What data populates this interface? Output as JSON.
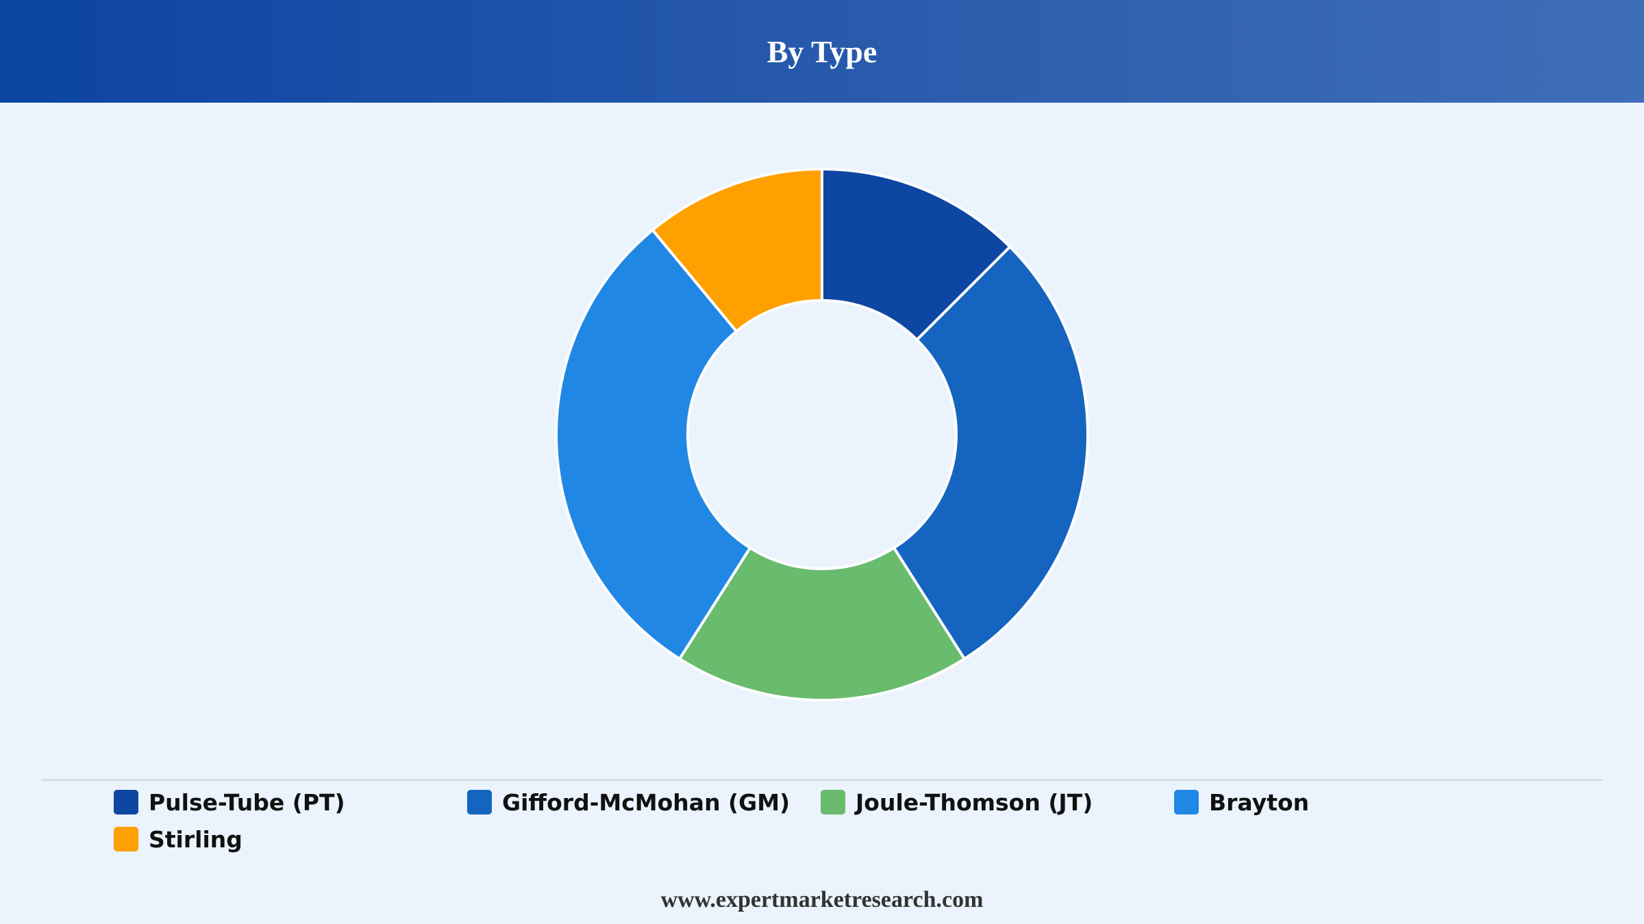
{
  "header": {
    "title": "By Type"
  },
  "chart_data": {
    "type": "pie",
    "title": "By Type",
    "donut": true,
    "legend_position": "bottom",
    "categories": [
      "Pulse-Tube (PT)",
      "Gifford-McMohan (GM)",
      "Joule-Thomson (JT)",
      "Brayton",
      "Stirling"
    ],
    "values": [
      12.5,
      28.5,
      18.0,
      30.0,
      11.0
    ],
    "colors": [
      "#0e47a1",
      "#1565c0",
      "#69bb6d",
      "#2187e5",
      "#fea000"
    ]
  },
  "legend": {
    "items": [
      {
        "label": "Pulse-Tube (PT)",
        "color": "#0e47a1"
      },
      {
        "label": "Gifford-McMohan (GM)",
        "color": "#1565c0"
      },
      {
        "label": "Joule-Thomson (JT)",
        "color": "#69bb6d"
      },
      {
        "label": "Brayton",
        "color": "#2187e5"
      },
      {
        "label": "Stirling",
        "color": "#fea000"
      }
    ]
  },
  "footer": {
    "text": "www.expertmarketresearch.com"
  }
}
